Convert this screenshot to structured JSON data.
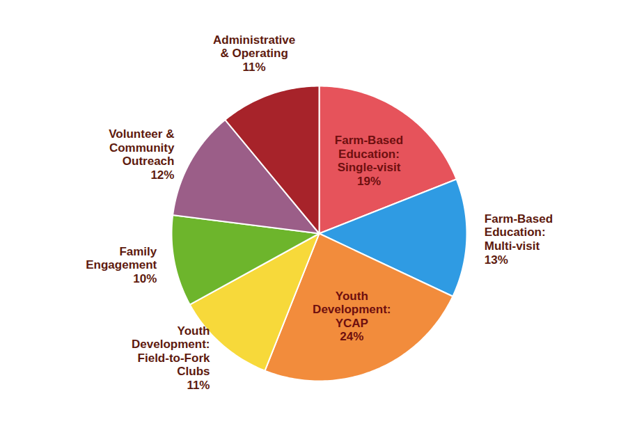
{
  "chart_data": {
    "type": "pie",
    "categories": [
      "Farm-Based Education: Single-visit",
      "Farm-Based Education: Multi-visit",
      "Youth Development: YCAP",
      "Youth Development: Field-to-Fork Clubs",
      "Family Engagement",
      "Volunteer & Community Outreach",
      "Administrative & Operating"
    ],
    "values": [
      19,
      13,
      24,
      11,
      10,
      12,
      11
    ],
    "value_labels": [
      "19%",
      "13%",
      "24%",
      "11%",
      "10%",
      "12%",
      "11%"
    ],
    "colors": [
      "#e6535b",
      "#2f9be3",
      "#f28c3c",
      "#f7d93a",
      "#6db52c",
      "#9b5e88",
      "#a7232a"
    ],
    "data_labels": true
  }
}
